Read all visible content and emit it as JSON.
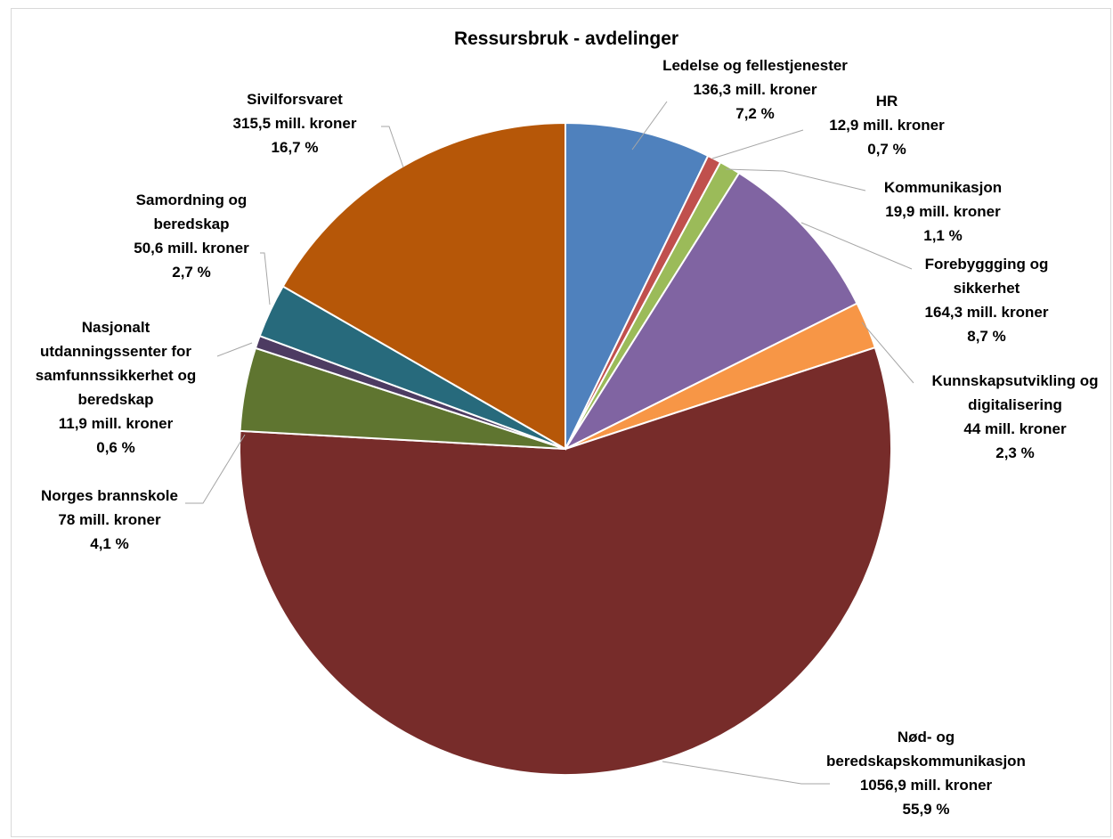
{
  "chart_data": {
    "type": "pie",
    "title": "Ressursbruk - avdelinger",
    "slices": [
      {
        "name": "Ledelse og fellestjenester",
        "value": 136.3,
        "value_label": "136,3 mill. kroner",
        "percent_label": "7,2 %",
        "color": "#4f81bd"
      },
      {
        "name": "HR",
        "value": 12.9,
        "value_label": "12,9 mill. kroner",
        "percent_label": "0,7 %",
        "color": "#c0504d"
      },
      {
        "name": "Kommunikasjon",
        "value": 19.9,
        "value_label": "19,9 mill. kroner",
        "percent_label": "1,1 %",
        "color": "#9bbb59"
      },
      {
        "name": "Forebyggging og sikkerhet",
        "value": 164.3,
        "value_label": "164,3 mill. kroner",
        "percent_label": "8,7 %",
        "color": "#8064a2"
      },
      {
        "name": "Kunnskapsutvikling og digitalisering",
        "value": 44,
        "value_label": "44 mill. kroner",
        "percent_label": "2,3 %",
        "color": "#f79646"
      },
      {
        "name": "Nød- og beredskapskommunikasjon",
        "value": 1056.9,
        "value_label": "1056,9 mill. kroner",
        "percent_label": "55,9 %",
        "color": "#772c2a"
      },
      {
        "name": "Norges brannskole",
        "value": 78,
        "value_label": "78 mill. kroner",
        "percent_label": "4,1 %",
        "color": "#5f7530"
      },
      {
        "name": "Nasjonalt utdanningssenter for samfunnssikkerhet og beredskap",
        "value": 11.9,
        "value_label": "11,9 mill. kroner",
        "percent_label": "0,6 %",
        "color": "#4d3b62"
      },
      {
        "name": "Samordning og beredskap",
        "value": 50.6,
        "value_label": "50,6 mill. kroner",
        "percent_label": "2,7 %",
        "color": "#276a7c"
      },
      {
        "name": "Sivilforsvaret",
        "value": 315.5,
        "value_label": "315,5 mill. kroner",
        "percent_label": "16,7 %",
        "color": "#b65708"
      }
    ]
  }
}
